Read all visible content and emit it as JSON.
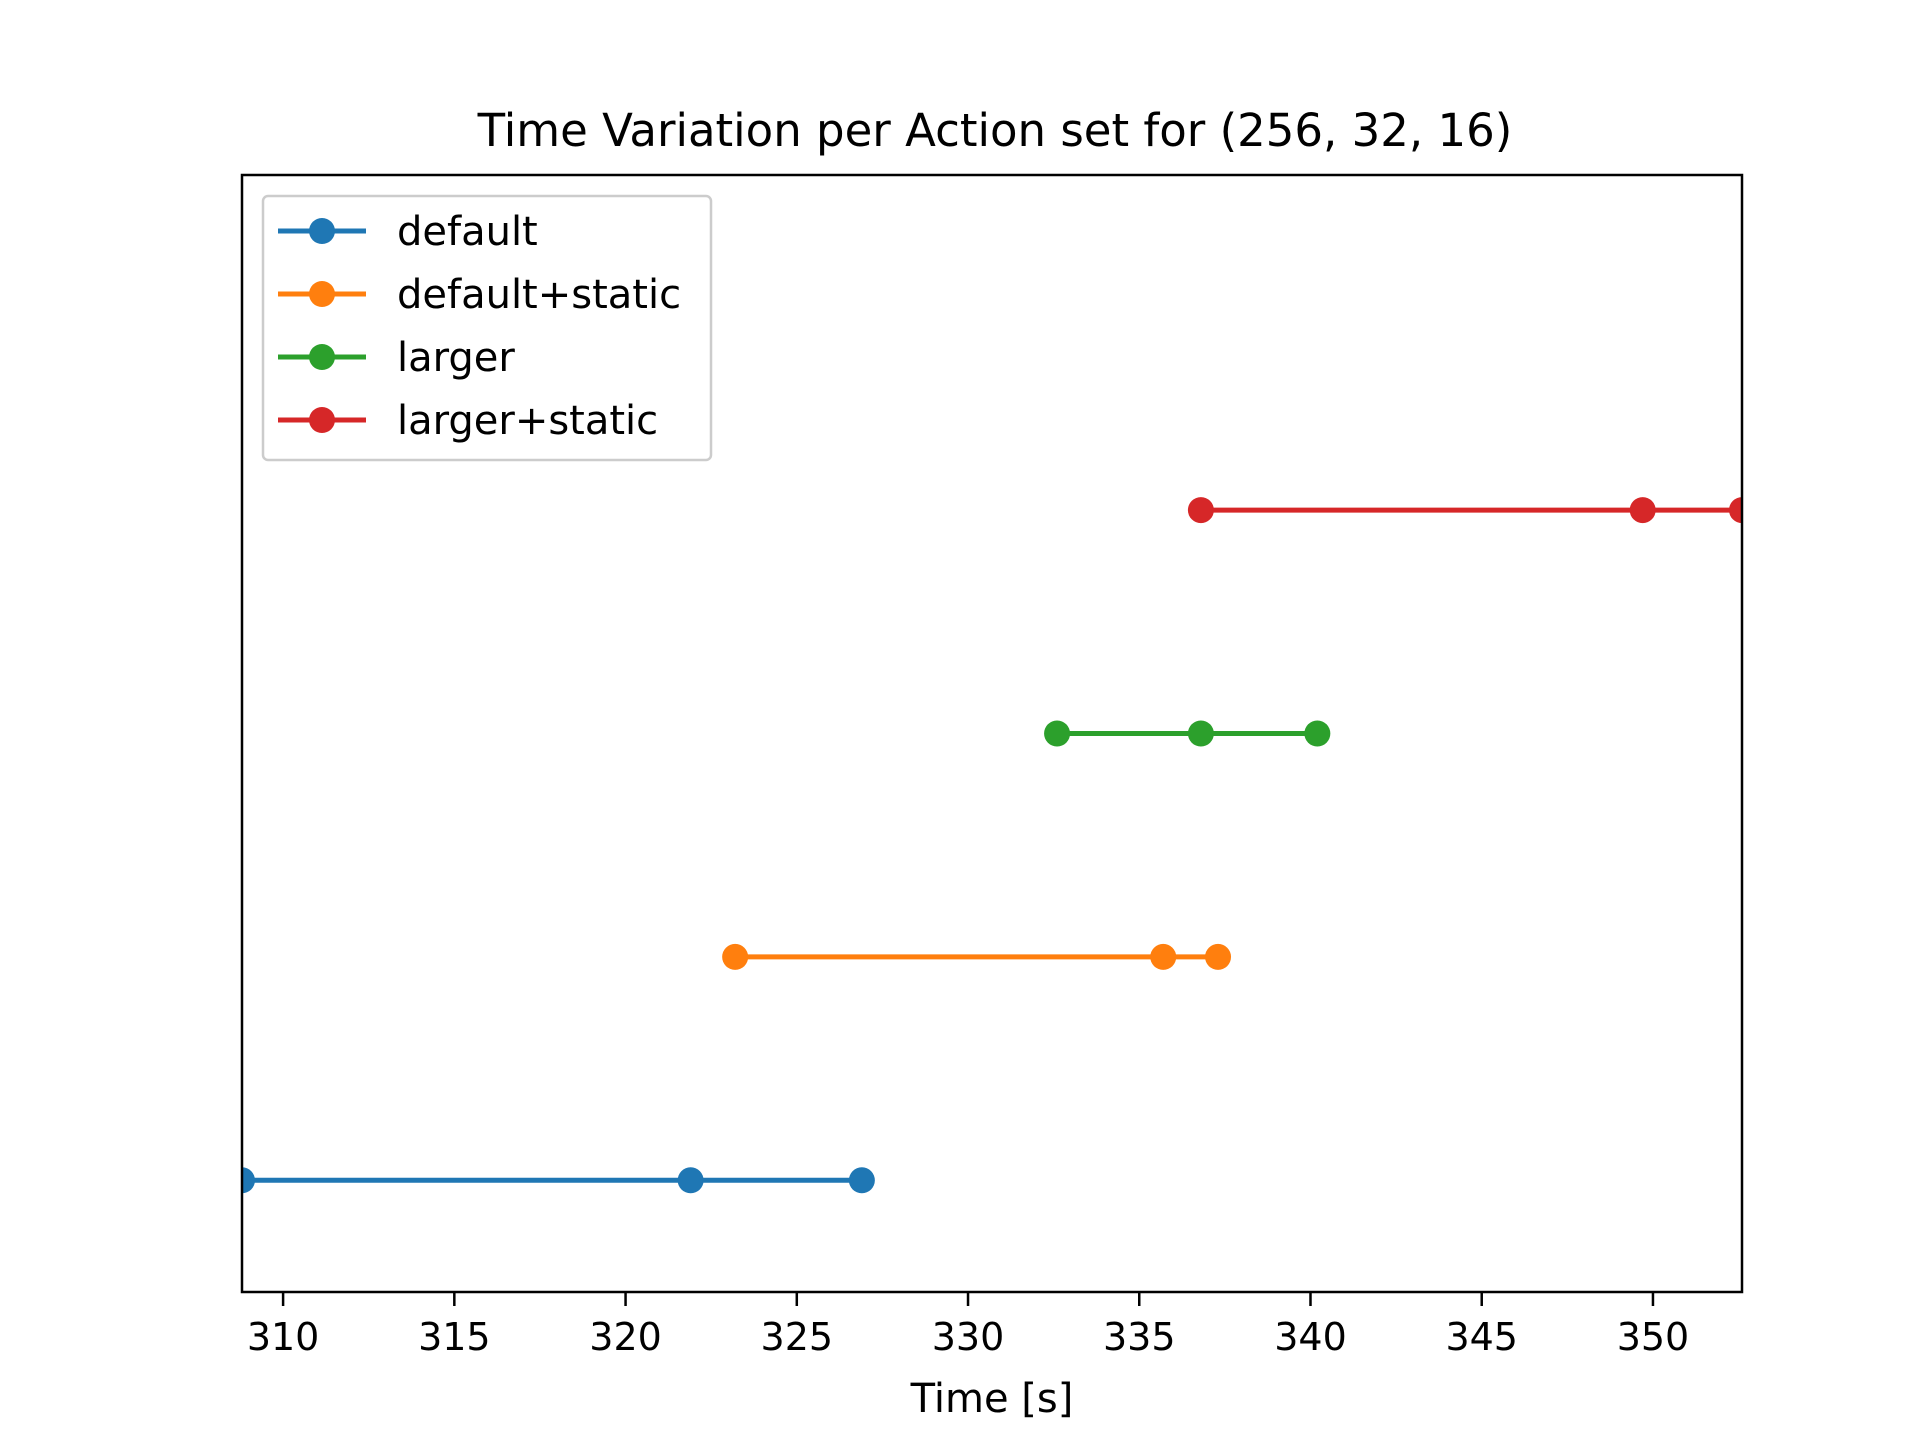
{
  "chart_data": {
    "type": "line",
    "title": "Time Variation per Action set for (256, 32, 16)",
    "xlabel": "Time [s]",
    "ylabel": "",
    "xlim": [
      308.8,
      352.6
    ],
    "ylim": [
      -0.5,
      4.5
    ],
    "x_ticks": [
      310,
      315,
      320,
      325,
      330,
      335,
      340,
      345,
      350
    ],
    "y_ticks_visible": false,
    "grid": false,
    "legend_position": "upper-left",
    "series": [
      {
        "name": "default",
        "color": "#1f77b4",
        "y": 0,
        "x": [
          308.8,
          321.9,
          326.9
        ]
      },
      {
        "name": "default+static",
        "color": "#ff7f0e",
        "y": 1,
        "x": [
          323.2,
          335.7,
          337.3
        ]
      },
      {
        "name": "larger",
        "color": "#2ca02c",
        "y": 2,
        "x": [
          332.6,
          336.8,
          340.2
        ]
      },
      {
        "name": "larger+static",
        "color": "#d62728",
        "y": 3,
        "x": [
          336.8,
          349.7,
          352.6
        ]
      }
    ]
  }
}
